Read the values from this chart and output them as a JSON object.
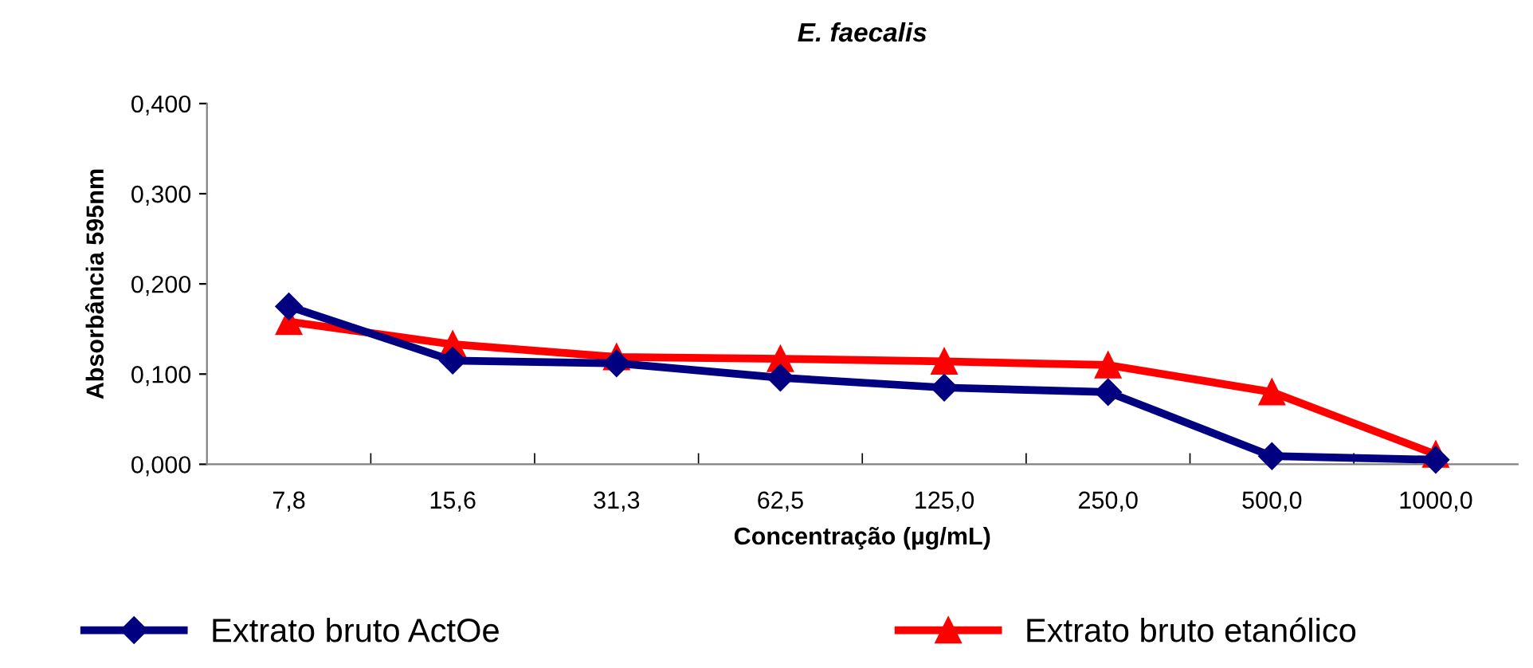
{
  "chart_data": {
    "type": "line",
    "title": "E. faecalis",
    "xlabel": "Concentração (µg/mL)",
    "ylabel": "Absorbância 595nm",
    "categories": [
      "7,8",
      "15,6",
      "31,3",
      "62,5",
      "125,0",
      "250,0",
      "500,0",
      "1000,0"
    ],
    "series": [
      {
        "name": "Extrato bruto ActOe",
        "color": "#000080",
        "marker": "diamond",
        "values": [
          0.175,
          0.115,
          0.112,
          0.096,
          0.085,
          0.08,
          0.009,
          0.005
        ]
      },
      {
        "name": "Extrato bruto etanólico",
        "color": "#ff0000",
        "marker": "triangle",
        "values": [
          0.158,
          0.133,
          0.119,
          0.117,
          0.114,
          0.11,
          0.08,
          0.011
        ]
      }
    ],
    "ylim": [
      0,
      0.4
    ],
    "yticks": [
      {
        "value": 0,
        "label": "0,000"
      },
      {
        "value": 0.1,
        "label": "0,100"
      },
      {
        "value": 0.2,
        "label": "0,200"
      },
      {
        "value": 0.3,
        "label": "0,300"
      },
      {
        "value": 0.4,
        "label": "0,400"
      }
    ],
    "grid": false,
    "legend": "bottom"
  }
}
